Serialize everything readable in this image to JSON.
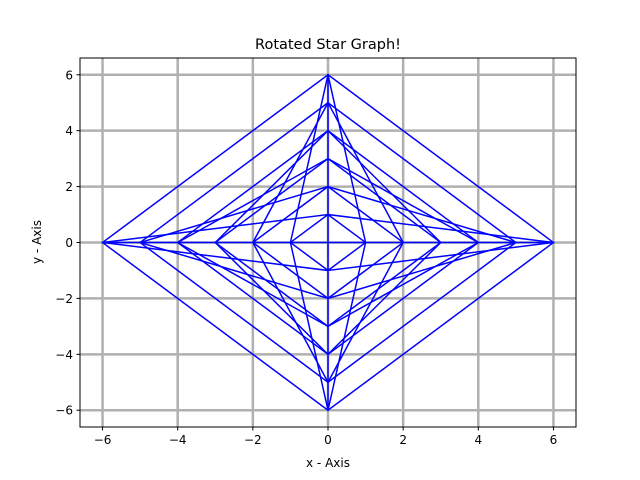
{
  "chart_data": {
    "type": "line",
    "title": "Rotated Star Graph!",
    "xlabel": "x - Axis",
    "ylabel": "y - Axis",
    "xlim": [
      -6.6,
      6.6
    ],
    "ylim": [
      -6.6,
      6.6
    ],
    "xticks": [
      -6,
      -4,
      -2,
      0,
      2,
      4,
      6
    ],
    "yticks": [
      -6,
      -4,
      -2,
      0,
      2,
      4,
      6
    ],
    "xtick_labels": [
      "−6",
      "−4",
      "−2",
      "0",
      "2",
      "4",
      "6"
    ],
    "ytick_labels": [
      "−6",
      "−4",
      "−2",
      "0",
      "2",
      "4",
      "6"
    ],
    "grid": true,
    "grid_color": "#b0b0b0",
    "line_color": "#0000ff",
    "series": [
      {
        "x": [
          0,
          6
        ],
        "y": [
          6,
          0
        ]
      },
      {
        "x": [
          0,
          5
        ],
        "y": [
          5,
          0
        ]
      },
      {
        "x": [
          0,
          4
        ],
        "y": [
          4,
          0
        ]
      },
      {
        "x": [
          0,
          3
        ],
        "y": [
          3,
          0
        ]
      },
      {
        "x": [
          0,
          2
        ],
        "y": [
          2,
          0
        ]
      },
      {
        "x": [
          0,
          1
        ],
        "y": [
          1,
          0
        ]
      },
      {
        "x": [
          0,
          -6
        ],
        "y": [
          6,
          0
        ]
      },
      {
        "x": [
          0,
          -5
        ],
        "y": [
          5,
          0
        ]
      },
      {
        "x": [
          0,
          -4
        ],
        "y": [
          4,
          0
        ]
      },
      {
        "x": [
          0,
          -3
        ],
        "y": [
          3,
          0
        ]
      },
      {
        "x": [
          0,
          -2
        ],
        "y": [
          2,
          0
        ]
      },
      {
        "x": [
          0,
          -1
        ],
        "y": [
          1,
          0
        ]
      },
      {
        "x": [
          0,
          -6
        ],
        "y": [
          -6,
          0
        ]
      },
      {
        "x": [
          0,
          -5
        ],
        "y": [
          -5,
          0
        ]
      },
      {
        "x": [
          0,
          -4
        ],
        "y": [
          -4,
          0
        ]
      },
      {
        "x": [
          0,
          -3
        ],
        "y": [
          -3,
          0
        ]
      },
      {
        "x": [
          0,
          -2
        ],
        "y": [
          -2,
          0
        ]
      },
      {
        "x": [
          0,
          -1
        ],
        "y": [
          -1,
          0
        ]
      },
      {
        "x": [
          0,
          6
        ],
        "y": [
          -6,
          0
        ]
      },
      {
        "x": [
          0,
          5
        ],
        "y": [
          -5,
          0
        ]
      },
      {
        "x": [
          0,
          4
        ],
        "y": [
          -4,
          0
        ]
      },
      {
        "x": [
          0,
          3
        ],
        "y": [
          -3,
          0
        ]
      },
      {
        "x": [
          0,
          2
        ],
        "y": [
          -2,
          0
        ]
      },
      {
        "x": [
          0,
          1
        ],
        "y": [
          -1,
          0
        ]
      },
      {
        "x": [
          0,
          6
        ],
        "y": [
          1,
          0
        ]
      },
      {
        "x": [
          0,
          5
        ],
        "y": [
          2,
          0
        ]
      },
      {
        "x": [
          0,
          4
        ],
        "y": [
          3,
          0
        ]
      },
      {
        "x": [
          0,
          3
        ],
        "y": [
          4,
          0
        ]
      },
      {
        "x": [
          0,
          2
        ],
        "y": [
          5,
          0
        ]
      },
      {
        "x": [
          0,
          1
        ],
        "y": [
          6,
          0
        ]
      },
      {
        "x": [
          0,
          -6
        ],
        "y": [
          1,
          0
        ]
      },
      {
        "x": [
          0,
          -5
        ],
        "y": [
          2,
          0
        ]
      },
      {
        "x": [
          0,
          -4
        ],
        "y": [
          3,
          0
        ]
      },
      {
        "x": [
          0,
          -3
        ],
        "y": [
          4,
          0
        ]
      },
      {
        "x": [
          0,
          -2
        ],
        "y": [
          5,
          0
        ]
      },
      {
        "x": [
          0,
          -1
        ],
        "y": [
          6,
          0
        ]
      },
      {
        "x": [
          0,
          -6
        ],
        "y": [
          -1,
          0
        ]
      },
      {
        "x": [
          0,
          -5
        ],
        "y": [
          -2,
          0
        ]
      },
      {
        "x": [
          0,
          -4
        ],
        "y": [
          -3,
          0
        ]
      },
      {
        "x": [
          0,
          -3
        ],
        "y": [
          -4,
          0
        ]
      },
      {
        "x": [
          0,
          -2
        ],
        "y": [
          -5,
          0
        ]
      },
      {
        "x": [
          0,
          -1
        ],
        "y": [
          -6,
          0
        ]
      },
      {
        "x": [
          0,
          6
        ],
        "y": [
          -1,
          0
        ]
      },
      {
        "x": [
          0,
          5
        ],
        "y": [
          -2,
          0
        ]
      },
      {
        "x": [
          0,
          4
        ],
        "y": [
          -3,
          0
        ]
      },
      {
        "x": [
          0,
          3
        ],
        "y": [
          -4,
          0
        ]
      },
      {
        "x": [
          0,
          2
        ],
        "y": [
          -5,
          0
        ]
      },
      {
        "x": [
          0,
          1
        ],
        "y": [
          -6,
          0
        ]
      },
      {
        "x": [
          0,
          0
        ],
        "y": [
          -6,
          6
        ]
      },
      {
        "x": [
          -6,
          6
        ],
        "y": [
          0,
          0
        ]
      }
    ]
  }
}
